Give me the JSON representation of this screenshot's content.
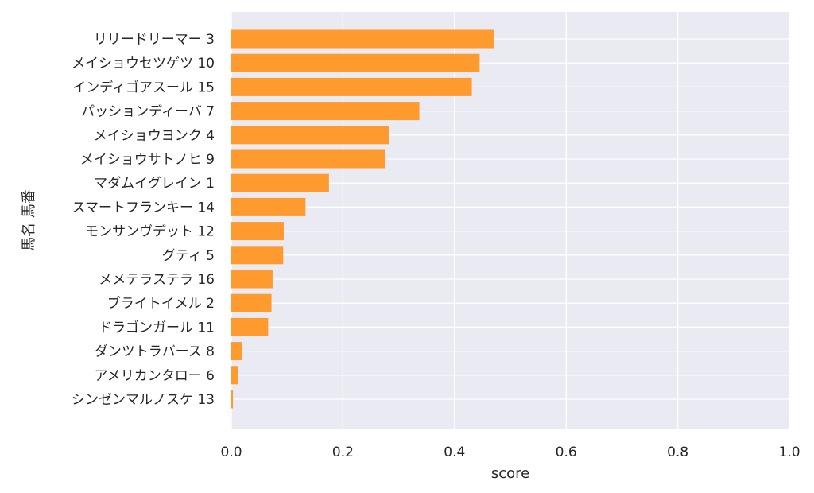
{
  "chart_data": {
    "type": "bar",
    "orientation": "horizontal",
    "title": "",
    "xlabel": "score",
    "ylabel": "馬名 馬番",
    "xlim": [
      0,
      1.0
    ],
    "xticks": [
      "0.0",
      "0.2",
      "0.4",
      "0.6",
      "0.8",
      "1.0"
    ],
    "grid": true,
    "bar_color": "#ff9a2e",
    "background_color": "#eaeaf2",
    "grid_color": "#ffffff",
    "categories": [
      "リリードリーマー 3",
      "メイショウセツゲツ 10",
      "インディゴアスール 15",
      "パッションディーバ 7",
      "メイショウヨンク 4",
      "メイショウサトノヒ 9",
      "マダムイグレイン 1",
      "スマートフランキー 14",
      "モンサンヴデット 12",
      "グティ 5",
      "メメテラステラ 16",
      "ブライトイメル 2",
      "ドラゴンガール 11",
      "ダンツトラバース 8",
      "アメリカンタロー 6",
      "シンゼンマルノスケ 13"
    ],
    "values": [
      0.47,
      0.445,
      0.431,
      0.337,
      0.282,
      0.275,
      0.175,
      0.133,
      0.094,
      0.093,
      0.074,
      0.072,
      0.066,
      0.02,
      0.012,
      0.003
    ]
  }
}
